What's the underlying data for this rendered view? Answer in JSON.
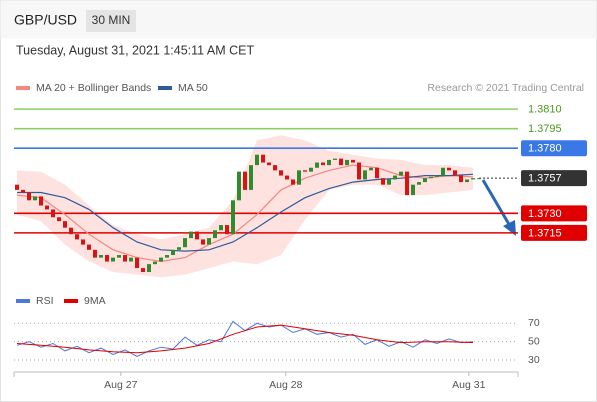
{
  "header": {
    "symbol": "GBP/USD",
    "timeframe": "30 MIN",
    "timestamp": "Tuesday, August 31, 2021 1:45:11 AM CET",
    "copyright": "Research © 2021 Trading Central"
  },
  "chart_data": [
    {
      "type": "candlestick",
      "x": [
        0,
        1,
        2,
        3,
        4,
        5,
        6,
        7,
        8,
        9,
        10,
        11,
        12,
        13,
        14,
        15,
        16,
        17,
        18,
        19,
        20,
        21,
        22,
        23,
        24,
        25,
        26,
        27,
        28,
        29,
        30,
        31,
        32,
        33,
        34,
        35,
        36,
        37,
        38,
        39,
        40,
        41,
        42,
        43,
        44,
        45,
        46,
        47,
        48,
        49,
        50,
        51,
        52,
        53,
        54,
        55,
        56,
        57,
        58,
        59,
        60,
        61,
        62,
        63,
        64,
        65,
        66,
        67,
        68,
        69,
        70,
        71,
        72,
        73,
        74,
        75,
        76,
        77
      ],
      "open": [
        1.3752,
        1.3748,
        1.3746,
        1.374,
        1.3743,
        1.3736,
        1.3733,
        1.3727,
        1.3724,
        1.3719,
        1.3714,
        1.371,
        1.3706,
        1.3702,
        1.3696,
        1.3698,
        1.3693,
        1.3696,
        1.3698,
        1.3693,
        1.3696,
        1.3688,
        1.3685,
        1.3691,
        1.3693,
        1.3696,
        1.3698,
        1.3702,
        1.3704,
        1.3711,
        1.3716,
        1.371,
        1.3706,
        1.3711,
        1.3717,
        1.3721,
        1.3714,
        1.374,
        1.3762,
        1.3748,
        1.3767,
        1.3775,
        1.3769,
        1.3767,
        1.3763,
        1.3759,
        1.3756,
        1.3752,
        1.3763,
        1.3762,
        1.3765,
        1.3769,
        1.3767,
        1.3771,
        1.3772,
        1.3767,
        1.3771,
        1.3769,
        1.3756,
        1.3763,
        1.3765,
        1.3757,
        1.3752,
        1.3756,
        1.3759,
        1.3762,
        1.3744,
        1.3752,
        1.3754,
        1.3757,
        1.3758,
        1.3759,
        1.3765,
        1.3763,
        1.3759,
        1.3754,
        1.3756,
        1.3757
      ],
      "close": [
        1.3748,
        1.3746,
        1.374,
        1.3743,
        1.3736,
        1.3733,
        1.3727,
        1.3724,
        1.3719,
        1.3714,
        1.371,
        1.3706,
        1.3702,
        1.3696,
        1.3698,
        1.3693,
        1.3696,
        1.3698,
        1.3693,
        1.3696,
        1.3688,
        1.3685,
        1.3691,
        1.3693,
        1.3696,
        1.3698,
        1.3702,
        1.3704,
        1.3711,
        1.3716,
        1.371,
        1.3706,
        1.3711,
        1.3717,
        1.3721,
        1.3714,
        1.374,
        1.3762,
        1.3748,
        1.3767,
        1.3775,
        1.3769,
        1.3767,
        1.3763,
        1.3759,
        1.3756,
        1.3752,
        1.3763,
        1.3762,
        1.3765,
        1.3769,
        1.3767,
        1.3771,
        1.3772,
        1.3767,
        1.3771,
        1.3769,
        1.3756,
        1.3763,
        1.3765,
        1.3757,
        1.3752,
        1.3756,
        1.3759,
        1.3762,
        1.3744,
        1.3752,
        1.3754,
        1.3757,
        1.3758,
        1.3759,
        1.3765,
        1.3763,
        1.3759,
        1.3754,
        1.3756,
        1.3757,
        1.3757
      ],
      "up_color": "#2e8b2e",
      "down_color": "#dd1111",
      "series": [
        {
          "name": "MA 20 + Bollinger Bands",
          "color": "#f4877f",
          "band_color": "#fde2df",
          "x": [
            0,
            4,
            8,
            12,
            16,
            20,
            24,
            28,
            32,
            36,
            40,
            44,
            48,
            52,
            56,
            60,
            64,
            68,
            72,
            76
          ],
          "values": [
            1.3744,
            1.3742,
            1.3729,
            1.3714,
            1.3702,
            1.3696,
            1.3693,
            1.3696,
            1.3706,
            1.3714,
            1.3729,
            1.3748,
            1.3757,
            1.3763,
            1.3767,
            1.3765,
            1.3759,
            1.3757,
            1.3759,
            1.3758
          ],
          "upper": [
            1.3763,
            1.3762,
            1.3752,
            1.3736,
            1.3721,
            1.3714,
            1.371,
            1.3714,
            1.3719,
            1.374,
            1.3786,
            1.379,
            1.3786,
            1.3778,
            1.3775,
            1.3772,
            1.3771,
            1.3767,
            1.3767,
            1.3765
          ],
          "lower": [
            1.3729,
            1.3724,
            1.3706,
            1.3693,
            1.3685,
            1.3683,
            1.3681,
            1.3683,
            1.3688,
            1.3693,
            1.3691,
            1.3698,
            1.3725,
            1.3748,
            1.3752,
            1.3752,
            1.3744,
            1.3744,
            1.3746,
            1.3748
          ]
        },
        {
          "name": "MA 50",
          "color": "#2f5b9b",
          "x": [
            0,
            4,
            8,
            12,
            16,
            20,
            24,
            28,
            32,
            36,
            40,
            44,
            48,
            52,
            56,
            60,
            64,
            68,
            72,
            76
          ],
          "values": [
            1.3746,
            1.3746,
            1.3742,
            1.3733,
            1.3719,
            1.3708,
            1.3702,
            1.3701,
            1.3702,
            1.3708,
            1.3719,
            1.3731,
            1.3742,
            1.3749,
            1.3754,
            1.3756,
            1.3757,
            1.3759,
            1.3759,
            1.376
          ]
        }
      ],
      "levels": [
        {
          "value": 1.381,
          "label": "1.3810",
          "color": "#8ccf63",
          "text_color": "#4a9a1e",
          "box": false
        },
        {
          "value": 1.3795,
          "label": "1.3795",
          "color": "#8ccf63",
          "text_color": "#4a9a1e",
          "box": false
        },
        {
          "value": 1.378,
          "label": "1.3780",
          "color": "#3b78e7",
          "text_color": "#ffffff",
          "box": true
        },
        {
          "value": 1.3757,
          "label": "1.3757",
          "color": "#333333",
          "text_color": "#ffffff",
          "box": true,
          "dotted": true
        },
        {
          "value": 1.373,
          "label": "1.3730",
          "color": "#e00000",
          "text_color": "#ffffff",
          "box": true
        },
        {
          "value": 1.3715,
          "label": "1.3715",
          "color": "#e00000",
          "text_color": "#ffffff",
          "box": true
        }
      ],
      "xlim": [
        -0.5,
        83.5
      ],
      "ylim": [
        1.3675,
        1.3817
      ]
    },
    {
      "type": "line",
      "series": [
        {
          "name": "RSI",
          "color": "#4f76d8",
          "x": [
            0,
            2,
            4,
            6,
            8,
            10,
            12,
            14,
            16,
            18,
            20,
            22,
            24,
            26,
            28,
            30,
            32,
            34,
            36,
            38,
            40,
            42,
            44,
            46,
            48,
            50,
            52,
            54,
            56,
            58,
            60,
            62,
            64,
            66,
            68,
            70,
            72,
            74,
            76
          ],
          "values": [
            46,
            50,
            44,
            48,
            40,
            45,
            38,
            43,
            36,
            41,
            34,
            40,
            44,
            42,
            55,
            46,
            52,
            50,
            72,
            62,
            70,
            66,
            68,
            60,
            64,
            58,
            60,
            55,
            58,
            47,
            52,
            45,
            50,
            44,
            52,
            48,
            53,
            49,
            50
          ]
        },
        {
          "name": "9MA",
          "color": "#e00000",
          "x": [
            0,
            4,
            8,
            12,
            16,
            20,
            24,
            28,
            32,
            36,
            40,
            44,
            48,
            52,
            56,
            60,
            64,
            68,
            72,
            76
          ],
          "values": [
            48,
            46,
            44,
            41,
            39,
            38,
            40,
            43,
            48,
            58,
            66,
            68,
            64,
            60,
            57,
            52,
            49,
            50,
            50,
            49
          ]
        }
      ],
      "xlim": [
        -0.5,
        83.5
      ],
      "ylim": [
        17,
        79
      ],
      "yticks": [
        70,
        50,
        30
      ],
      "xticks": [
        {
          "value": 17.3,
          "label": "Aug 27"
        },
        {
          "value": 44.8,
          "label": "Aug 28"
        },
        {
          "value": 75.3,
          "label": "Aug 31"
        }
      ]
    }
  ]
}
